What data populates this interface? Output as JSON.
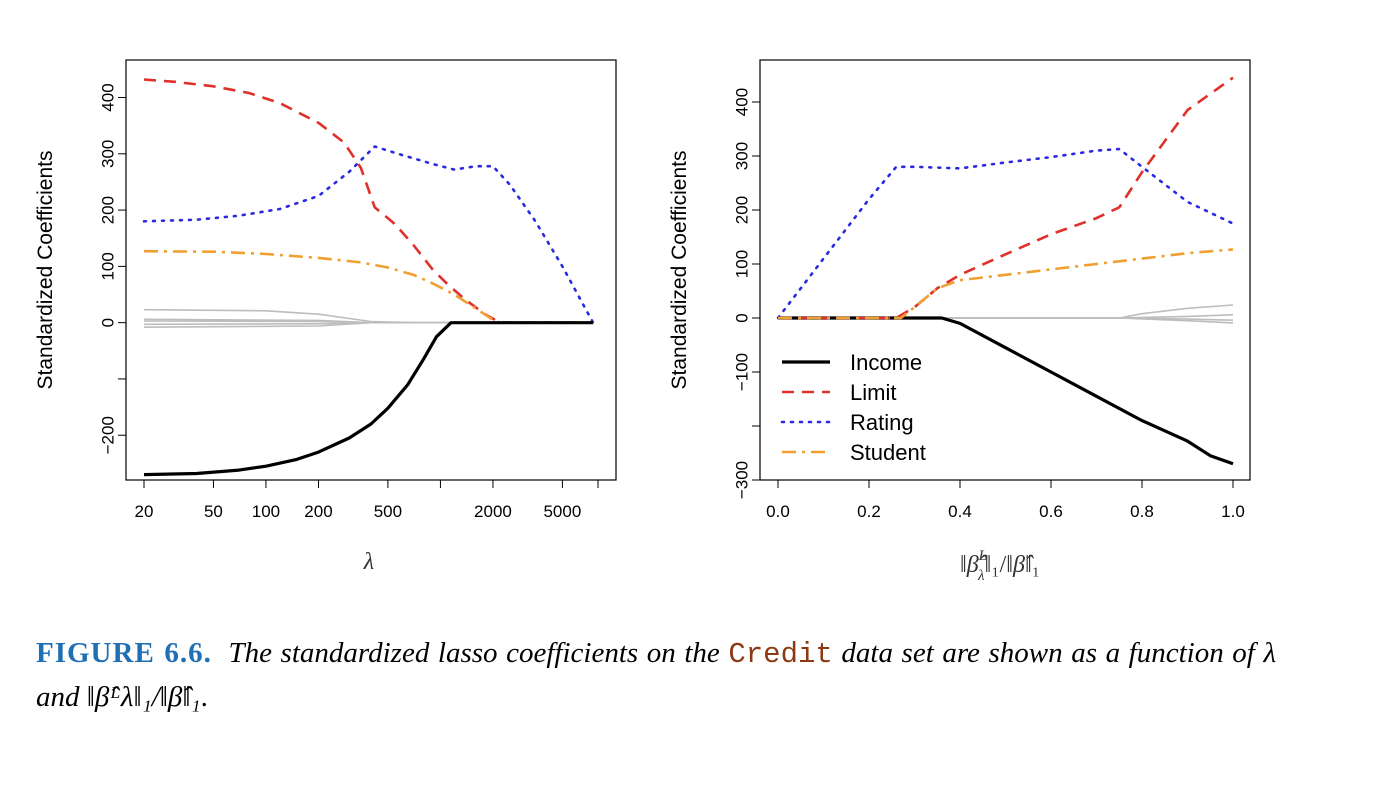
{
  "chart_data": [
    {
      "type": "line",
      "ylabel": "Standardized Coefficients",
      "xlabel_symbol": "λ",
      "x_scale": "log",
      "xlim": [
        20,
        8000
      ],
      "ylim": [
        -260,
        440
      ],
      "x_ticks": [
        20,
        50,
        100,
        200,
        500,
        1000,
        2000,
        5000,
        8000
      ],
      "x_tick_labels": [
        "20",
        "50",
        "100",
        "200",
        "500",
        "",
        "2000",
        "5000",
        ""
      ],
      "y_ticks": [
        -200,
        -100,
        0,
        100,
        200,
        300,
        400
      ],
      "y_tick_labels": [
        "−200",
        "",
        "0",
        "100",
        "200",
        "300",
        "400"
      ],
      "series": [
        {
          "name": "Limit",
          "color": "#e0302a",
          "dash": "dashed",
          "x": [
            20,
            30,
            50,
            80,
            120,
            200,
            280,
            350,
            420,
            550,
            700,
            900,
            1100,
            1400,
            1800,
            2200,
            3000,
            5000,
            7500
          ],
          "y": [
            432,
            428,
            420,
            408,
            390,
            355,
            320,
            275,
            205,
            175,
            138,
            95,
            68,
            40,
            15,
            0,
            0,
            0,
            0
          ]
        },
        {
          "name": "Rating",
          "color": "#2a2ae0",
          "dash": "dotted",
          "x": [
            20,
            40,
            70,
            120,
            200,
            300,
            420,
            600,
            900,
            1200,
            1600,
            2000,
            2500,
            3500,
            5000,
            7500
          ],
          "y": [
            180,
            183,
            190,
            202,
            225,
            268,
            313,
            298,
            282,
            272,
            278,
            278,
            245,
            180,
            100,
            0
          ]
        },
        {
          "name": "Student",
          "color": "#f0a030",
          "dash": "dashdot",
          "x": [
            20,
            50,
            100,
            200,
            350,
            500,
            700,
            900,
            1200,
            1600,
            2000,
            2200,
            3000,
            5000,
            7500
          ],
          "y": [
            127,
            126,
            122,
            115,
            107,
            98,
            85,
            70,
            50,
            25,
            5,
            0,
            0,
            0,
            0
          ]
        },
        {
          "name": "Income",
          "color": "#000000",
          "dash": "solid",
          "x": [
            20,
            40,
            70,
            100,
            150,
            200,
            300,
            400,
            500,
            650,
            800,
            950,
            1150,
            1500,
            3000,
            7500
          ],
          "y": [
            -270,
            -268,
            -262,
            -255,
            -243,
            -230,
            -205,
            -180,
            -152,
            -110,
            -65,
            -25,
            0,
            0,
            0,
            0
          ]
        },
        {
          "name": "",
          "color": "#bdbdbd",
          "dash": "solid",
          "x": [
            20,
            100,
            200,
            400,
            700,
            7500
          ],
          "y": [
            23,
            21,
            15,
            2,
            0,
            0
          ]
        },
        {
          "name": "",
          "color": "#bdbdbd",
          "dash": "solid",
          "x": [
            20,
            200,
            400,
            7500
          ],
          "y": [
            6,
            4,
            0,
            0
          ]
        },
        {
          "name": "",
          "color": "#bdbdbd",
          "dash": "solid",
          "x": [
            20,
            200,
            400,
            7500
          ],
          "y": [
            3,
            2,
            0,
            0
          ]
        },
        {
          "name": "",
          "color": "#bdbdbd",
          "dash": "solid",
          "x": [
            20,
            200,
            400,
            7500
          ],
          "y": [
            -3,
            -2,
            0,
            0
          ]
        },
        {
          "name": "",
          "color": "#bdbdbd",
          "dash": "solid",
          "x": [
            20,
            200,
            400,
            7500
          ],
          "y": [
            -8,
            -6,
            0,
            0
          ]
        }
      ]
    },
    {
      "type": "line",
      "ylabel": "Standardized Coefficients",
      "xlabel_parts": {
        "open": "‖",
        "beta": "β̂",
        "sup": "L",
        "sub": "λ",
        "mid": "‖₁/‖",
        "beta2": "β̂",
        "close": "‖₁"
      },
      "xlim": [
        0,
        1
      ],
      "ylim": [
        -300,
        450
      ],
      "x_ticks": [
        0,
        0.2,
        0.4,
        0.6,
        0.8,
        1.0
      ],
      "x_tick_labels": [
        "0.0",
        "0.2",
        "0.4",
        "0.6",
        "0.8",
        "1.0"
      ],
      "y_ticks": [
        -300,
        -200,
        -100,
        0,
        100,
        200,
        300,
        400
      ],
      "y_tick_labels": [
        "−300",
        "",
        "−100",
        "0",
        "100",
        "200",
        "300",
        "400"
      ],
      "legend": {
        "position": "bottom-left",
        "entries": [
          "Income",
          "Limit",
          "Rating",
          "Student"
        ]
      },
      "series": [
        {
          "name": "Income",
          "color": "#000000",
          "dash": "solid",
          "x": [
            0,
            0.36,
            0.4,
            0.5,
            0.6,
            0.7,
            0.8,
            0.9,
            0.95,
            1.0
          ],
          "y": [
            0,
            0,
            -10,
            -55,
            -100,
            -145,
            -190,
            -228,
            -255,
            -270
          ]
        },
        {
          "name": "Limit",
          "color": "#e0302a",
          "dash": "dashed",
          "x": [
            0,
            0.26,
            0.3,
            0.35,
            0.4,
            0.5,
            0.6,
            0.7,
            0.75,
            0.8,
            0.9,
            1.0
          ],
          "y": [
            0,
            0,
            20,
            55,
            80,
            118,
            155,
            185,
            205,
            270,
            385,
            445
          ]
        },
        {
          "name": "Rating",
          "color": "#2a2ae0",
          "dash": "dotted",
          "x": [
            0,
            0.1,
            0.2,
            0.26,
            0.3,
            0.4,
            0.5,
            0.6,
            0.7,
            0.75,
            0.8,
            0.9,
            1.0
          ],
          "y": [
            0,
            110,
            220,
            280,
            280,
            277,
            288,
            298,
            310,
            313,
            280,
            215,
            175
          ]
        },
        {
          "name": "Student",
          "color": "#f0a030",
          "dash": "dashdot",
          "x": [
            0,
            0.27,
            0.3,
            0.35,
            0.4,
            0.5,
            0.6,
            0.7,
            0.8,
            0.9,
            1.0
          ],
          "y": [
            0,
            0,
            20,
            55,
            70,
            80,
            90,
            100,
            110,
            120,
            127
          ]
        },
        {
          "name": "",
          "color": "#bdbdbd",
          "dash": "solid",
          "x": [
            0,
            0.75,
            0.8,
            0.9,
            1.0
          ],
          "y": [
            0,
            0,
            8,
            18,
            24
          ]
        },
        {
          "name": "",
          "color": "#bdbdbd",
          "dash": "solid",
          "x": [
            0,
            0.75,
            0.9,
            1.0
          ],
          "y": [
            0,
            0,
            3,
            6
          ]
        },
        {
          "name": "",
          "color": "#bdbdbd",
          "dash": "solid",
          "x": [
            0,
            0.75,
            0.9,
            1.0
          ],
          "y": [
            0,
            0,
            -2,
            -4
          ]
        },
        {
          "name": "",
          "color": "#bdbdbd",
          "dash": "solid",
          "x": [
            0,
            0.75,
            0.9,
            1.0
          ],
          "y": [
            0,
            0,
            -5,
            -9
          ]
        }
      ]
    }
  ],
  "caption": {
    "label": "FIGURE 6.6.",
    "text_1": "The standardized lasso coefficients on the",
    "code": "Credit",
    "text_2": "data set are shown as a function of",
    "lambda": "λ",
    "and": "and",
    "norm": "‖β̂ᴸλ‖₁/‖β̂‖₁",
    "end": "."
  }
}
